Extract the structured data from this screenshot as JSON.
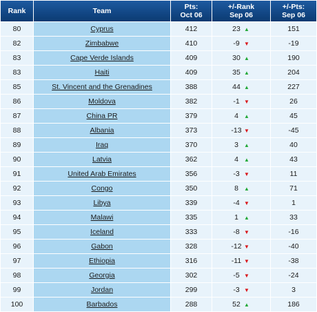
{
  "header": {
    "rank": "Rank",
    "team": "Team",
    "points_line1": "Pts:",
    "points_line2": "Oct 06",
    "rank_change_line1": "+/-Rank",
    "rank_change_line2": "Sep 06",
    "points_change_line1": "+/-Pts:",
    "points_change_line2": "Sep 06"
  },
  "icons": {
    "up": "triangle-up-icon",
    "down": "triangle-down-icon",
    "up_color": "#24a93a",
    "down_color": "#d9161b"
  },
  "rows": [
    {
      "rank": "80",
      "team": "Cyprus",
      "points": "412",
      "rank_change": "23",
      "direction": "up",
      "points_change": "151"
    },
    {
      "rank": "82",
      "team": "Zimbabwe",
      "points": "410",
      "rank_change": "-9",
      "direction": "down",
      "points_change": "-19"
    },
    {
      "rank": "83",
      "team": "Cape Verde Islands",
      "points": "409",
      "rank_change": "30",
      "direction": "up",
      "points_change": "190"
    },
    {
      "rank": "83",
      "team": "Haiti",
      "points": "409",
      "rank_change": "35",
      "direction": "up",
      "points_change": "204"
    },
    {
      "rank": "85",
      "team": "St. Vincent and the Grenadines",
      "points": "388",
      "rank_change": "44",
      "direction": "up",
      "points_change": "227"
    },
    {
      "rank": "86",
      "team": "Moldova",
      "points": "382",
      "rank_change": "-1",
      "direction": "down",
      "points_change": "26"
    },
    {
      "rank": "87",
      "team": "China PR",
      "points": "379",
      "rank_change": "4",
      "direction": "up",
      "points_change": "45"
    },
    {
      "rank": "88",
      "team": "Albania",
      "points": "373",
      "rank_change": "-13",
      "direction": "down",
      "points_change": "-45"
    },
    {
      "rank": "89",
      "team": "Iraq",
      "points": "370",
      "rank_change": "3",
      "direction": "up",
      "points_change": "40"
    },
    {
      "rank": "90",
      "team": "Latvia",
      "points": "362",
      "rank_change": "4",
      "direction": "up",
      "points_change": "43"
    },
    {
      "rank": "91",
      "team": "United Arab Emirates",
      "points": "356",
      "rank_change": "-3",
      "direction": "down",
      "points_change": "11"
    },
    {
      "rank": "92",
      "team": "Congo",
      "points": "350",
      "rank_change": "8",
      "direction": "up",
      "points_change": "71"
    },
    {
      "rank": "93",
      "team": "Libya",
      "points": "339",
      "rank_change": "-4",
      "direction": "down",
      "points_change": "1"
    },
    {
      "rank": "94",
      "team": "Malawi",
      "points": "335",
      "rank_change": "1",
      "direction": "up",
      "points_change": "33"
    },
    {
      "rank": "95",
      "team": "Iceland",
      "points": "333",
      "rank_change": "-8",
      "direction": "down",
      "points_change": "-16"
    },
    {
      "rank": "96",
      "team": "Gabon",
      "points": "328",
      "rank_change": "-12",
      "direction": "down",
      "points_change": "-40"
    },
    {
      "rank": "97",
      "team": "Ethiopia",
      "points": "316",
      "rank_change": "-11",
      "direction": "down",
      "points_change": "-38"
    },
    {
      "rank": "98",
      "team": "Georgia",
      "points": "302",
      "rank_change": "-5",
      "direction": "down",
      "points_change": "-24"
    },
    {
      "rank": "99",
      "team": "Jordan",
      "points": "299",
      "rank_change": "-3",
      "direction": "down",
      "points_change": "3"
    },
    {
      "rank": "100",
      "team": "Barbados",
      "points": "288",
      "rank_change": "52",
      "direction": "up",
      "points_change": "186"
    }
  ]
}
